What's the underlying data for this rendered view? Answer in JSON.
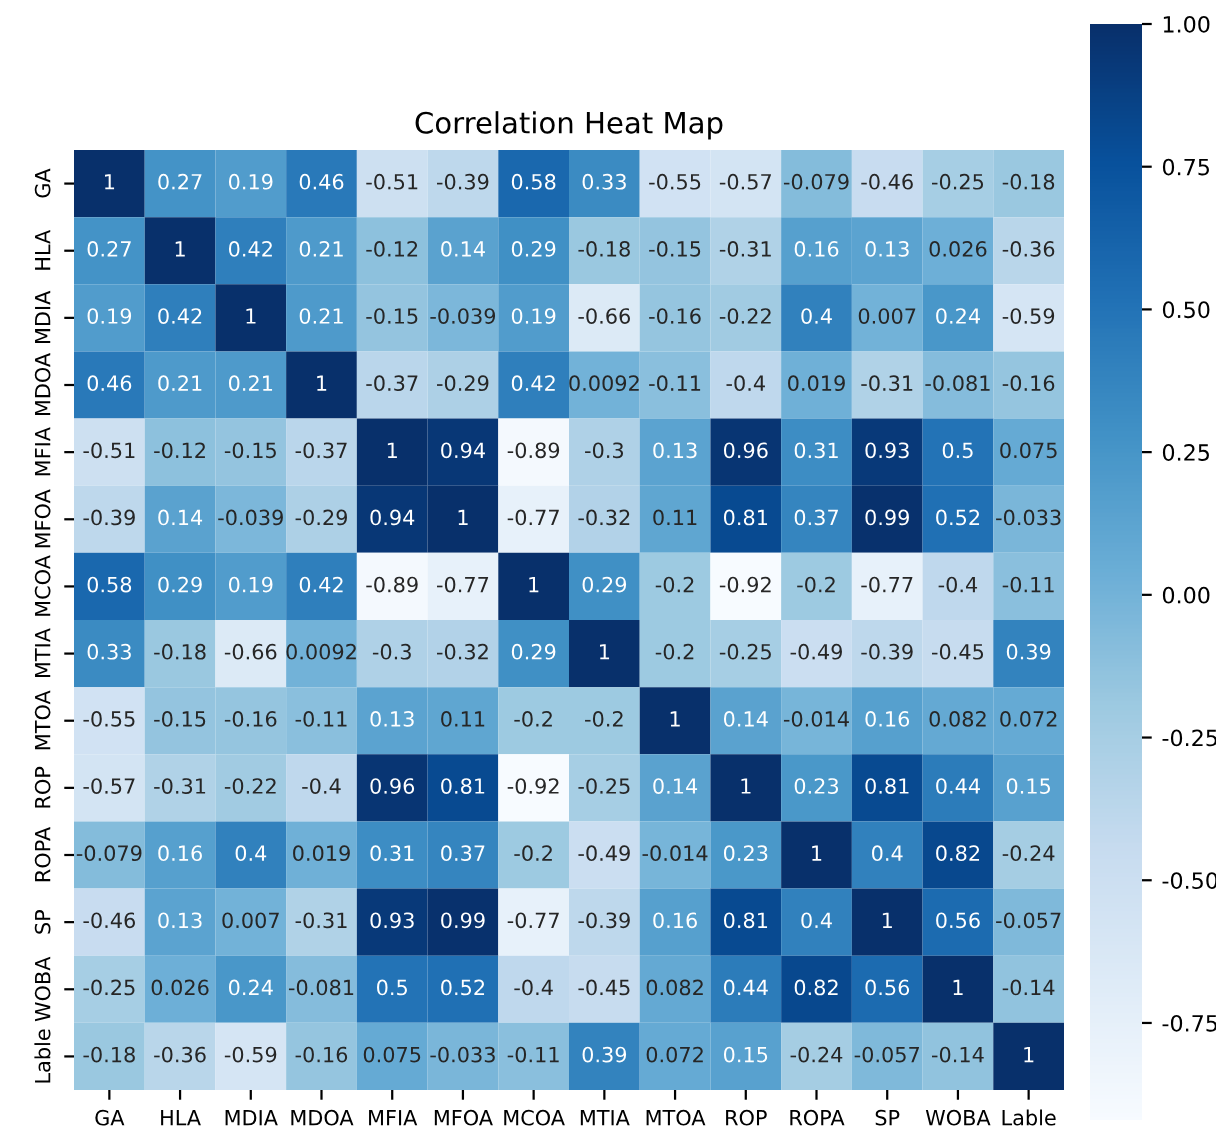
{
  "chart_data": {
    "type": "heatmap",
    "title": "Correlation Heat Map",
    "categories": [
      "GA",
      "HLA",
      "MDIA",
      "MDOA",
      "MFIA",
      "MFOA",
      "MCOA",
      "MTIA",
      "MTOA",
      "ROP",
      "ROPA",
      "SP",
      "WOBA",
      "Lable"
    ],
    "y_categories": [
      "GA",
      "HLA",
      "MDIA",
      "MDOA",
      "MFIA",
      "MFOA",
      "MCOA",
      "MTIA",
      "MTOA",
      "ROP",
      "ROPA",
      "SP",
      "WOBA",
      "Lable"
    ],
    "cells": [
      [
        1,
        0.27,
        0.19,
        0.46,
        -0.51,
        -0.39,
        0.58,
        0.33,
        -0.55,
        -0.57,
        -0.079,
        -0.46,
        -0.25,
        -0.18
      ],
      [
        0.27,
        1,
        0.42,
        0.21,
        -0.12,
        0.14,
        0.29,
        -0.18,
        -0.15,
        -0.31,
        0.16,
        0.13,
        0.026,
        -0.36
      ],
      [
        0.19,
        0.42,
        1,
        0.21,
        -0.15,
        -0.039,
        0.19,
        -0.66,
        -0.16,
        -0.22,
        0.4,
        0.007,
        0.24,
        -0.59
      ],
      [
        0.46,
        0.21,
        0.21,
        1,
        -0.37,
        -0.29,
        0.42,
        0.0092,
        -0.11,
        -0.4,
        0.019,
        -0.31,
        -0.081,
        -0.16
      ],
      [
        -0.51,
        -0.12,
        -0.15,
        -0.37,
        1,
        0.94,
        -0.89,
        -0.3,
        0.13,
        0.96,
        0.31,
        0.93,
        0.5,
        0.075
      ],
      [
        -0.39,
        0.14,
        -0.039,
        -0.29,
        0.94,
        1,
        -0.77,
        -0.32,
        0.11,
        0.81,
        0.37,
        0.99,
        0.52,
        -0.033
      ],
      [
        0.58,
        0.29,
        0.19,
        0.42,
        -0.89,
        -0.77,
        1,
        0.29,
        -0.2,
        -0.92,
        -0.2,
        -0.77,
        -0.4,
        -0.11
      ],
      [
        0.33,
        -0.18,
        -0.66,
        0.0092,
        -0.3,
        -0.32,
        0.29,
        1,
        -0.2,
        -0.25,
        -0.49,
        -0.39,
        -0.45,
        0.39
      ],
      [
        -0.55,
        -0.15,
        -0.16,
        -0.11,
        0.13,
        0.11,
        -0.2,
        -0.2,
        1,
        0.14,
        -0.014,
        0.16,
        0.082,
        0.072
      ],
      [
        -0.57,
        -0.31,
        -0.22,
        -0.4,
        0.96,
        0.81,
        -0.92,
        -0.25,
        0.14,
        1,
        0.23,
        0.81,
        0.44,
        0.15
      ],
      [
        -0.079,
        0.16,
        0.4,
        0.019,
        0.31,
        0.37,
        -0.2,
        -0.49,
        -0.014,
        0.23,
        1,
        0.4,
        0.82,
        -0.24
      ],
      [
        -0.46,
        0.13,
        0.007,
        -0.31,
        0.93,
        0.99,
        -0.77,
        -0.39,
        0.16,
        0.81,
        0.4,
        1,
        0.56,
        -0.057
      ],
      [
        -0.25,
        0.026,
        0.24,
        -0.081,
        0.5,
        0.52,
        -0.4,
        -0.45,
        0.082,
        0.44,
        0.82,
        0.56,
        1,
        -0.14
      ],
      [
        -0.18,
        -0.36,
        -0.59,
        -0.16,
        0.075,
        -0.033,
        -0.11,
        0.39,
        0.072,
        0.15,
        -0.24,
        -0.057,
        -0.14,
        1
      ]
    ],
    "clim": [
      -0.92,
      1
    ],
    "cticks": [
      {
        "value": -0.75,
        "label": "-0.75"
      },
      {
        "value": -0.5,
        "label": "-0.50"
      },
      {
        "value": -0.25,
        "label": "-0.25"
      },
      {
        "value": 0,
        "label": "0.00"
      },
      {
        "value": 0.25,
        "label": "0.25"
      },
      {
        "value": 0.5,
        "label": "0.50"
      },
      {
        "value": 0.75,
        "label": "0.75"
      },
      {
        "value": 1,
        "label": "1.00"
      }
    ],
    "data_labels": true
  }
}
